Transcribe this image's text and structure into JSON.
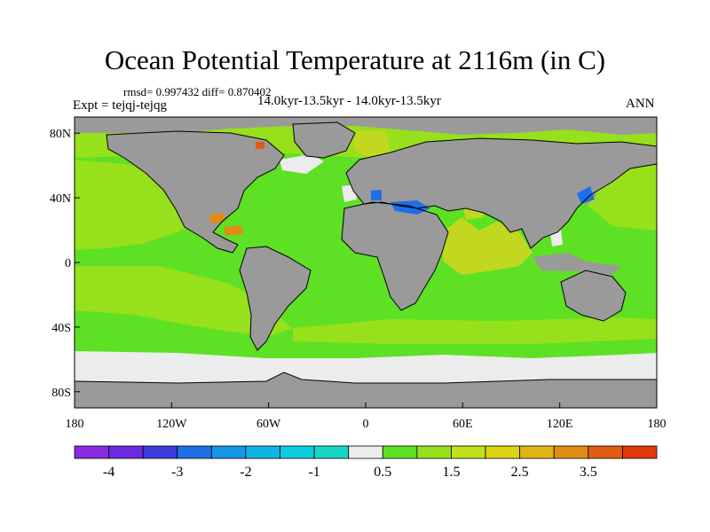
{
  "title": "Ocean Potential Temperature at 2116m (in C)",
  "stats": "rmsd= 0.997432 diff= 0.870402",
  "period": "14.0kyr-13.5kyr - 14.0kyr-13.5kyr",
  "experiment": "Expt = tejqj-tejqg",
  "season": "ANN",
  "map": {
    "projection": "cylindrical-equidistant",
    "lon_range": [
      -180,
      180
    ],
    "lat_range": [
      -90,
      90
    ],
    "land_color": "#9a9a9a",
    "coast_color": "#000000",
    "lat_ticks": [
      {
        "value": 80,
        "label": "80N"
      },
      {
        "value": 40,
        "label": "40N"
      },
      {
        "value": 0,
        "label": "0"
      },
      {
        "value": -40,
        "label": "40S"
      },
      {
        "value": -80,
        "label": "80S"
      }
    ],
    "lon_ticks": [
      {
        "value": -180,
        "label": "180"
      },
      {
        "value": -120,
        "label": "120W"
      },
      {
        "value": -60,
        "label": "60W"
      },
      {
        "value": 0,
        "label": "0"
      },
      {
        "value": 60,
        "label": "60E"
      },
      {
        "value": 120,
        "label": "120E"
      },
      {
        "value": 180,
        "label": "180"
      }
    ]
  },
  "colorbar": {
    "colors": [
      "#8a2be2",
      "#6a2ae0",
      "#3c3cdc",
      "#1e6ee6",
      "#1496e8",
      "#10b4e4",
      "#10cce0",
      "#18d6c4",
      "#ececec",
      "#5ee024",
      "#96e01c",
      "#c2e01c",
      "#dcd414",
      "#e0b414",
      "#e08c14",
      "#e05c10",
      "#e03a0c"
    ],
    "labels": [
      {
        "after_box": 1,
        "text": "-4"
      },
      {
        "after_box": 3,
        "text": "-3"
      },
      {
        "after_box": 5,
        "text": "-2"
      },
      {
        "after_box": 7,
        "text": "-1"
      },
      {
        "after_box": 9,
        "text": "0.5"
      },
      {
        "after_box": 11,
        "text": "1.5"
      },
      {
        "after_box": 13,
        "text": "2.5"
      },
      {
        "after_box": 15,
        "text": "3.5"
      }
    ]
  }
}
